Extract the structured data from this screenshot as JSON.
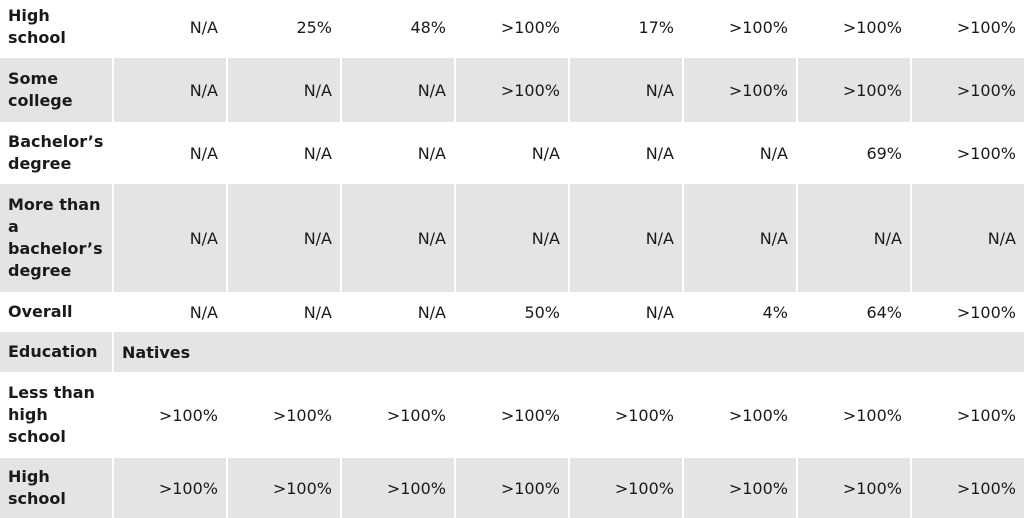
{
  "table": {
    "rows": [
      {
        "type": "data",
        "label": "High school",
        "cells": [
          "N/A",
          "25%",
          "48%",
          ">100%",
          "17%",
          ">100%",
          ">100%",
          ">100%"
        ]
      },
      {
        "type": "data",
        "label": "Some college",
        "cells": [
          "N/A",
          "N/A",
          "N/A",
          ">100%",
          "N/A",
          ">100%",
          ">100%",
          ">100%"
        ]
      },
      {
        "type": "data",
        "label": "Bachelor’s degree",
        "cells": [
          "N/A",
          "N/A",
          "N/A",
          "N/A",
          "N/A",
          "N/A",
          "69%",
          ">100%"
        ]
      },
      {
        "type": "data",
        "label": "More than a bachelor’s degree",
        "cells": [
          "N/A",
          "N/A",
          "N/A",
          "N/A",
          "N/A",
          "N/A",
          "N/A",
          "N/A"
        ]
      },
      {
        "type": "data",
        "label": "Overall",
        "cells": [
          "N/A",
          "N/A",
          "N/A",
          "50%",
          "N/A",
          "4%",
          "64%",
          ">100%"
        ]
      },
      {
        "type": "header",
        "label": "Education",
        "group": "Natives"
      },
      {
        "type": "data",
        "label": "Less than high school",
        "cells": [
          ">100%",
          ">100%",
          ">100%",
          ">100%",
          ">100%",
          ">100%",
          ">100%",
          ">100%"
        ]
      },
      {
        "type": "data",
        "label": "High school",
        "cells": [
          ">100%",
          ">100%",
          ">100%",
          ">100%",
          ">100%",
          ">100%",
          ">100%",
          ">100%"
        ]
      }
    ]
  }
}
